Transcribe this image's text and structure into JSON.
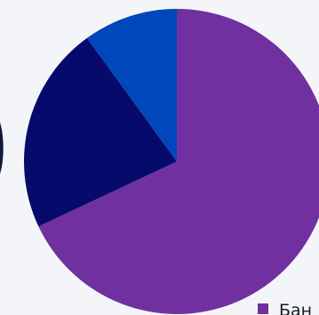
{
  "chart_data": {
    "type": "pie",
    "title": "",
    "slices": [
      {
        "label": "Бан",
        "value": 68,
        "color": "#7030a0"
      },
      {
        "label": "",
        "value": 22,
        "color": "#060a6b"
      },
      {
        "label": "",
        "value": 10,
        "color": "#0047bb"
      }
    ],
    "start_angle_deg": 0,
    "direction": "clockwise",
    "legend": {
      "placement": "bottom-right",
      "visible_entries": [
        {
          "label": "Бан",
          "color": "#7030a0"
        }
      ]
    }
  },
  "side_edge_color": "#111a3a"
}
